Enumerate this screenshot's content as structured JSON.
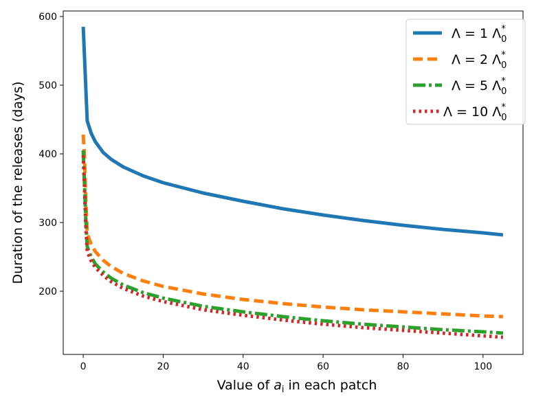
{
  "chart_data": {
    "type": "line",
    "title": "",
    "xlabel_prefix": "Value of ",
    "xlabel_var": "a",
    "xlabel_sub": "i",
    "xlabel_suffix": " in each patch",
    "ylabel": "Duration of the releases (days)",
    "xlim": [
      -5,
      110
    ],
    "ylim": [
      108,
      608
    ],
    "xticks": [
      "0",
      "20",
      "40",
      "60",
      "80",
      "100"
    ],
    "yticks": [
      "200",
      "300",
      "400",
      "500",
      "600"
    ],
    "legend_position": "top-right",
    "series": [
      {
        "name": "Λ = 1 Λ0*",
        "label_main": "Λ = 1 Λ",
        "label_sub": "0",
        "label_sup": "*",
        "color": "#1f77b4",
        "dash": "",
        "x": [
          0,
          1,
          2,
          3,
          5,
          7,
          10,
          15,
          20,
          30,
          40,
          50,
          60,
          70,
          80,
          90,
          100,
          105
        ],
        "values": [
          585,
          448,
          430,
          418,
          402,
          392,
          381,
          368,
          358,
          343,
          331,
          320,
          311,
          303,
          296,
          290,
          285,
          282
        ]
      },
      {
        "name": "Λ = 2 Λ0*",
        "label_main": "Λ = 2 Λ",
        "label_sub": "0",
        "label_sup": "*",
        "color": "#ff7f0e",
        "dash": "14,7",
        "x": [
          0,
          0.3,
          0.6,
          1,
          2,
          3,
          5,
          7,
          10,
          15,
          20,
          30,
          40,
          50,
          60,
          70,
          80,
          90,
          100,
          105
        ],
        "values": [
          428,
          400,
          340,
          284,
          268,
          258,
          245,
          236,
          226,
          215,
          207,
          196,
          188,
          182,
          177,
          173,
          170,
          167,
          164,
          163
        ]
      },
      {
        "name": "Λ = 5 Λ0*",
        "label_main": "Λ = 5 Λ",
        "label_sub": "0",
        "label_sup": "*",
        "color": "#2ca02c",
        "dash": "18,5,4,5",
        "x": [
          0,
          0.3,
          0.6,
          1,
          2,
          3,
          5,
          7,
          10,
          15,
          20,
          30,
          40,
          50,
          60,
          70,
          80,
          90,
          100,
          105
        ],
        "values": [
          405,
          360,
          310,
          265,
          250,
          240,
          228,
          219,
          209,
          198,
          190,
          178,
          170,
          163,
          157,
          152,
          148,
          144,
          141,
          139
        ]
      },
      {
        "name": "Λ = 10 Λ0*",
        "label_main": "Λ = 10 Λ",
        "label_sub": "0",
        "label_sup": "*",
        "color": "#d62728",
        "dash": "3.5,5",
        "x": [
          0,
          0.3,
          0.6,
          1,
          2,
          3,
          5,
          7,
          10,
          15,
          20,
          30,
          40,
          50,
          60,
          70,
          80,
          90,
          100,
          105
        ],
        "values": [
          398,
          355,
          300,
          258,
          244,
          235,
          223,
          214,
          204,
          193,
          185,
          173,
          165,
          158,
          152,
          147,
          143,
          139,
          135,
          133
        ]
      }
    ]
  }
}
